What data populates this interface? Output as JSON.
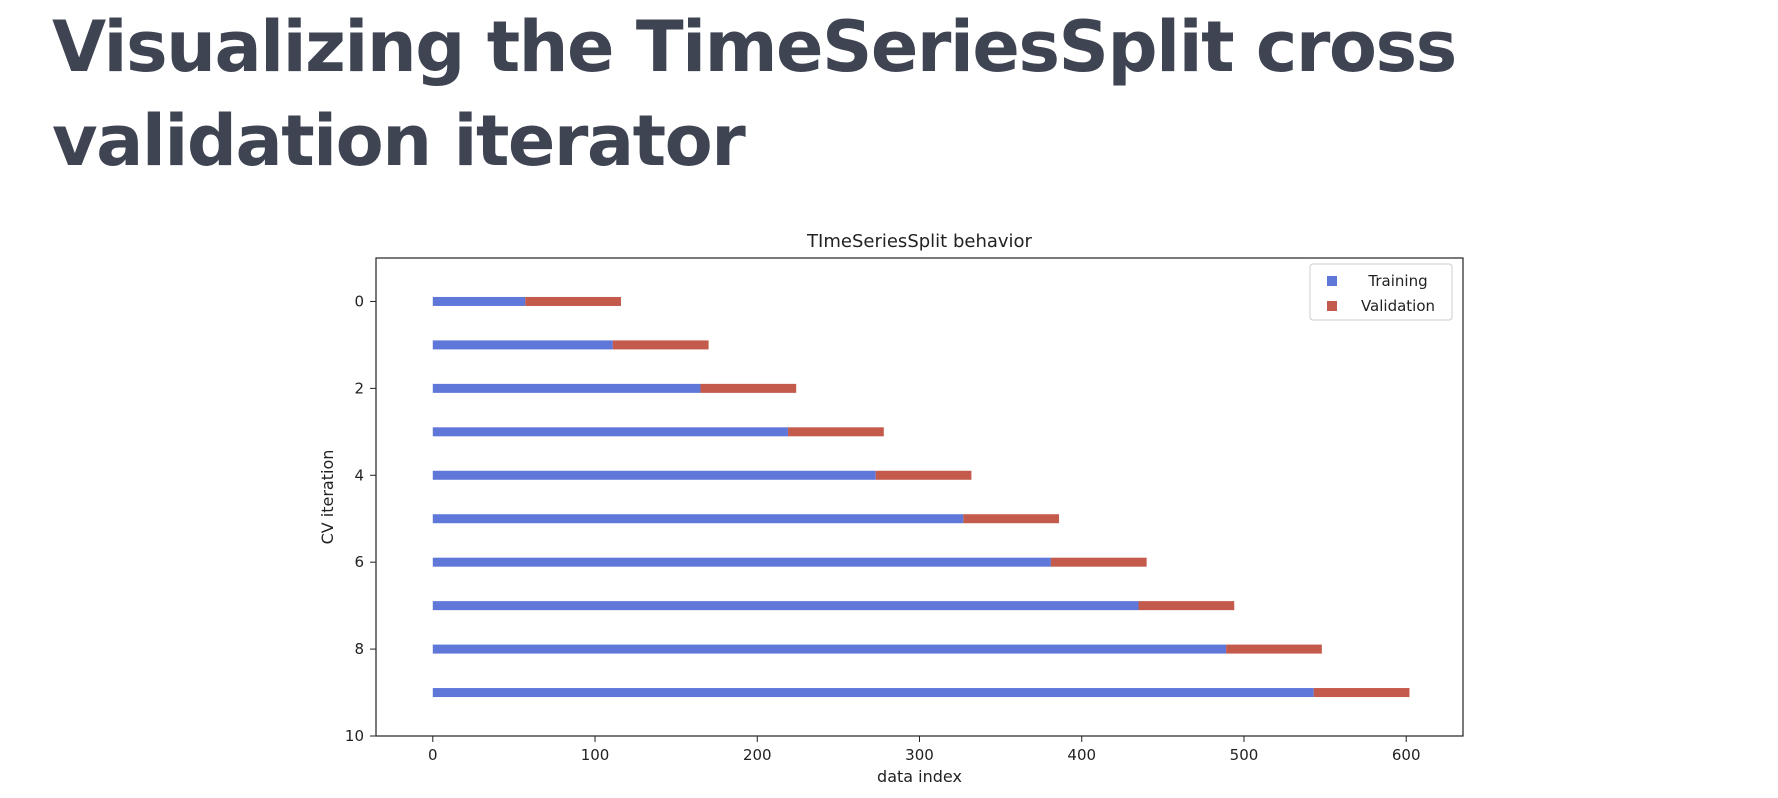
{
  "page": {
    "title": "Visualizing the TimeSeriesSplit cross validation iterator"
  },
  "chart_data": {
    "type": "bar",
    "orientation": "horizontal-stacked",
    "title": "TImeSeriesSplit behavior",
    "xlabel": "data index",
    "ylabel": "CV iteration",
    "xlim": [
      -35,
      635
    ],
    "ylim": [
      10,
      -1
    ],
    "x_ticks": [
      0,
      100,
      200,
      300,
      400,
      500,
      600
    ],
    "y_ticks": [
      0,
      2,
      4,
      6,
      8,
      10
    ],
    "grid": false,
    "legend_position": "top-right",
    "categories": [
      0,
      1,
      2,
      3,
      4,
      5,
      6,
      7,
      8,
      9
    ],
    "series": [
      {
        "name": "Training",
        "color": "#5f77d9",
        "ranges": [
          [
            0,
            57
          ],
          [
            0,
            111
          ],
          [
            0,
            165
          ],
          [
            0,
            219
          ],
          [
            0,
            273
          ],
          [
            0,
            327
          ],
          [
            0,
            381
          ],
          [
            0,
            435
          ],
          [
            0,
            489
          ],
          [
            0,
            543
          ]
        ]
      },
      {
        "name": "Validation",
        "color": "#c45a4b",
        "ranges": [
          [
            57,
            116
          ],
          [
            111,
            170
          ],
          [
            165,
            224
          ],
          [
            219,
            278
          ],
          [
            273,
            332
          ],
          [
            327,
            386
          ],
          [
            381,
            440
          ],
          [
            435,
            494
          ],
          [
            489,
            548
          ],
          [
            543,
            602
          ]
        ]
      }
    ]
  }
}
